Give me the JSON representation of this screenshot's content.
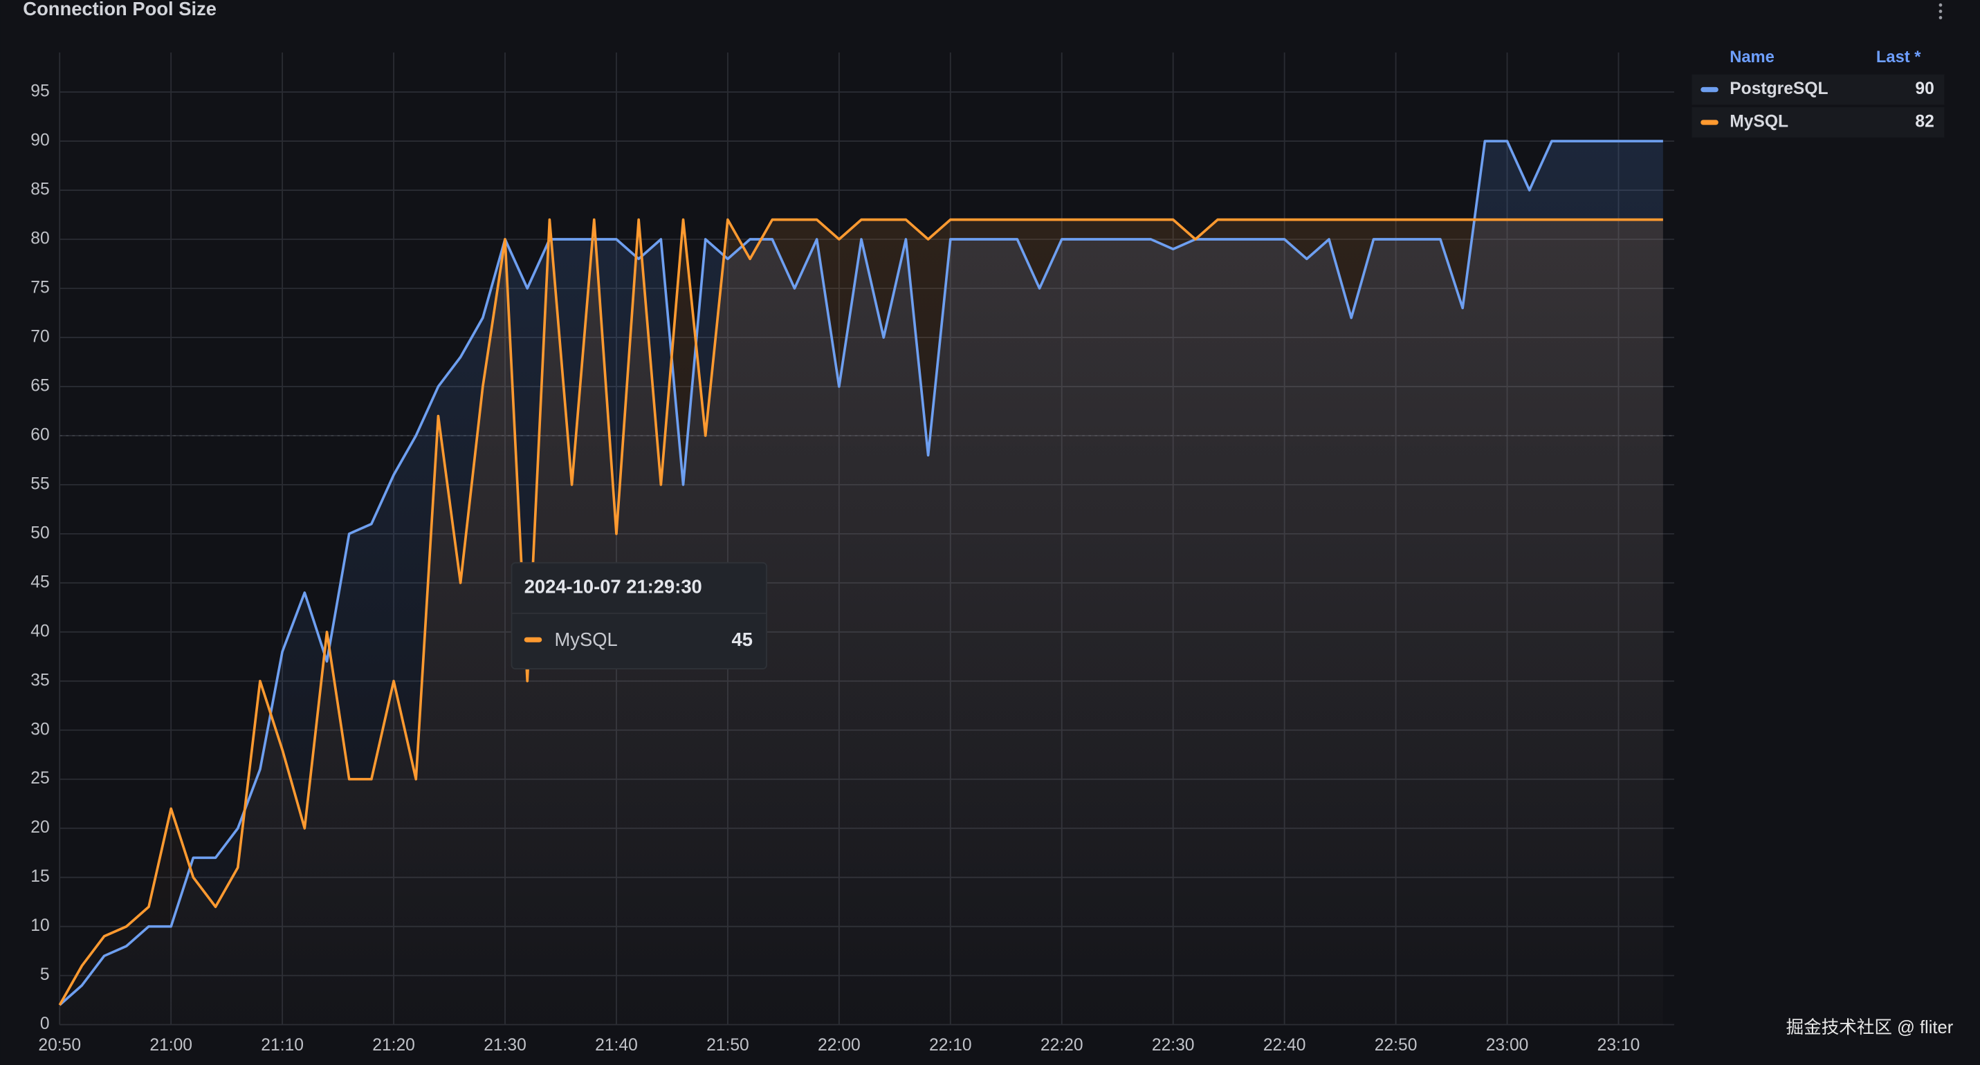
{
  "chart_data": {
    "type": "line",
    "title": "Connection Pool Size",
    "x": [
      "20:50",
      "20:52",
      "20:54",
      "20:56",
      "20:58",
      "21:00",
      "21:02",
      "21:04",
      "21:06",
      "21:08",
      "21:10",
      "21:12",
      "21:14",
      "21:16",
      "21:18",
      "21:20",
      "21:22",
      "21:24",
      "21:26",
      "21:28",
      "21:30",
      "21:32",
      "21:34",
      "21:36",
      "21:38",
      "21:40",
      "21:42",
      "21:44",
      "21:46",
      "21:48",
      "21:50",
      "21:52",
      "21:54",
      "21:56",
      "21:58",
      "22:00",
      "22:02",
      "22:04",
      "22:06",
      "22:08",
      "22:10",
      "22:12",
      "22:14",
      "22:16",
      "22:18",
      "22:20",
      "22:22",
      "22:24",
      "22:26",
      "22:28",
      "22:30",
      "22:32",
      "22:34",
      "22:36",
      "22:38",
      "22:40",
      "22:42",
      "22:44",
      "22:46",
      "22:48",
      "22:50",
      "22:52",
      "22:54",
      "22:56",
      "22:58",
      "23:00",
      "23:02",
      "23:04",
      "23:06",
      "23:08",
      "23:10",
      "23:12",
      "23:14"
    ],
    "series": [
      {
        "name": "PostgreSQL",
        "color": "#6e9ff0",
        "last": 90,
        "values": [
          2,
          4,
          7,
          8,
          10,
          10,
          17,
          17,
          20,
          26,
          38,
          44,
          37,
          50,
          51,
          56,
          60,
          65,
          68,
          72,
          80,
          75,
          80,
          80,
          80,
          80,
          78,
          80,
          55,
          80,
          78,
          80,
          80,
          75,
          80,
          65,
          80,
          70,
          80,
          58,
          80,
          80,
          80,
          80,
          75,
          80,
          80,
          80,
          80,
          80,
          79,
          80,
          80,
          80,
          80,
          80,
          78,
          80,
          72,
          80,
          80,
          80,
          80,
          73,
          90,
          90,
          85,
          90,
          90,
          90,
          90,
          90,
          90
        ]
      },
      {
        "name": "MySQL",
        "color": "#ff9a30",
        "last": 82,
        "values": [
          2,
          6,
          9,
          10,
          12,
          22,
          15,
          12,
          16,
          35,
          28,
          20,
          40,
          25,
          25,
          35,
          25,
          62,
          45,
          65,
          80,
          35,
          82,
          55,
          82,
          50,
          82,
          55,
          82,
          60,
          82,
          78,
          82,
          82,
          82,
          80,
          82,
          82,
          82,
          80,
          82,
          82,
          82,
          82,
          82,
          82,
          82,
          82,
          82,
          82,
          82,
          80,
          82,
          82,
          82,
          82,
          82,
          82,
          82,
          82,
          82,
          82,
          82,
          82,
          82,
          82,
          82,
          82,
          82,
          82,
          82,
          82,
          82
        ]
      }
    ],
    "xlim": [
      "20:50",
      "23:15"
    ],
    "xticks": [
      "20:50",
      "21:00",
      "21:10",
      "21:20",
      "21:30",
      "21:40",
      "21:50",
      "22:00",
      "22:10",
      "22:20",
      "22:30",
      "22:40",
      "22:50",
      "23:00",
      "23:10"
    ],
    "ylim": [
      0,
      98
    ],
    "yticks": [
      0,
      5,
      10,
      15,
      20,
      25,
      30,
      35,
      40,
      45,
      50,
      55,
      60,
      65,
      70,
      75,
      80,
      85,
      90,
      95
    ],
    "grid": true,
    "threshold": 60,
    "legend": {
      "position": "right",
      "name_header": "Name",
      "value_header": "Last *"
    },
    "tooltip": {
      "time": "2024-10-07 21:29:30",
      "series": "MySQL",
      "value": 45
    }
  },
  "watermark": "掘金技术社区 @ fliter"
}
